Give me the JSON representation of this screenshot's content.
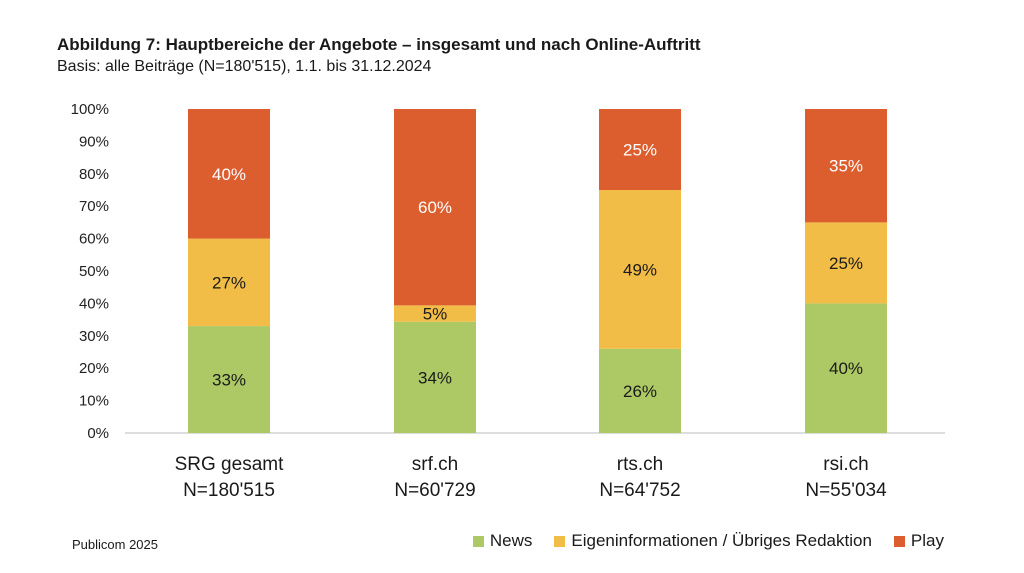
{
  "chart_data": {
    "type": "bar",
    "stacked": true,
    "title": "Abbildung 7: Hauptbereiche der Angebote – insgesamt und nach Online-Auftritt",
    "subtitle": "Basis: alle Beiträge (N=180'515), 1.1. bis 31.12.2024",
    "source": "Publicom 2025",
    "categories": [
      {
        "name": "SRG gesamt",
        "n": "N=180'515"
      },
      {
        "name": "srf.ch",
        "n": "N=60'729"
      },
      {
        "name": "rts.ch",
        "n": "N=64'752"
      },
      {
        "name": "rsi.ch",
        "n": "N=55'034"
      }
    ],
    "series": [
      {
        "name": "News",
        "color": "#adc965",
        "values": [
          33,
          34,
          26,
          40
        ]
      },
      {
        "name": "Eigeninformationen / Übriges Redaktion",
        "color": "#f2bd47",
        "values": [
          27,
          5,
          49,
          25
        ]
      },
      {
        "name": "Play",
        "color": "#dc5d2d",
        "values": [
          40,
          60,
          25,
          35
        ]
      }
    ],
    "ylim": [
      0,
      100
    ],
    "yticks": [
      "0%",
      "10%",
      "20%",
      "30%",
      "40%",
      "50%",
      "60%",
      "70%",
      "80%",
      "90%",
      "100%"
    ],
    "grid": false,
    "legend": "bottom-right"
  }
}
